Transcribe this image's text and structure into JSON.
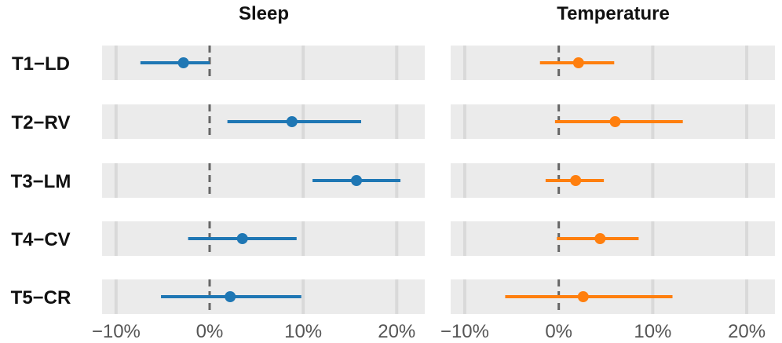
{
  "chart_data": {
    "type": "forest",
    "x_unit": "%",
    "xlim": [
      -11.5,
      23
    ],
    "x_ticks": [
      -10,
      0,
      10,
      20
    ],
    "x_tick_labels": [
      "−10%",
      "0%",
      "10%",
      "20%"
    ],
    "reference_line": 0,
    "rows": [
      "T1−LD",
      "T2−RV",
      "T3−LM",
      "T4−CV",
      "T5−CR"
    ],
    "panels": [
      {
        "title": "Sleep",
        "color": "#1f77b4",
        "estimates": [
          -2.8,
          8.8,
          15.7,
          3.5,
          2.2
        ],
        "lower": [
          -7.4,
          1.9,
          11.0,
          -2.3,
          -5.2
        ],
        "upper": [
          0.0,
          16.2,
          20.4,
          9.3,
          9.8
        ]
      },
      {
        "title": "Temperature",
        "color": "#ff7f0e",
        "estimates": [
          2.1,
          6.0,
          1.8,
          4.4,
          2.6
        ],
        "lower": [
          -2.0,
          -0.4,
          -1.4,
          -0.2,
          -5.7
        ],
        "upper": [
          5.9,
          13.2,
          4.8,
          8.5,
          12.1
        ]
      }
    ],
    "background": "#ebebeb",
    "gridline_color": "#d9d9d9",
    "reference_line_color": "#666666"
  }
}
